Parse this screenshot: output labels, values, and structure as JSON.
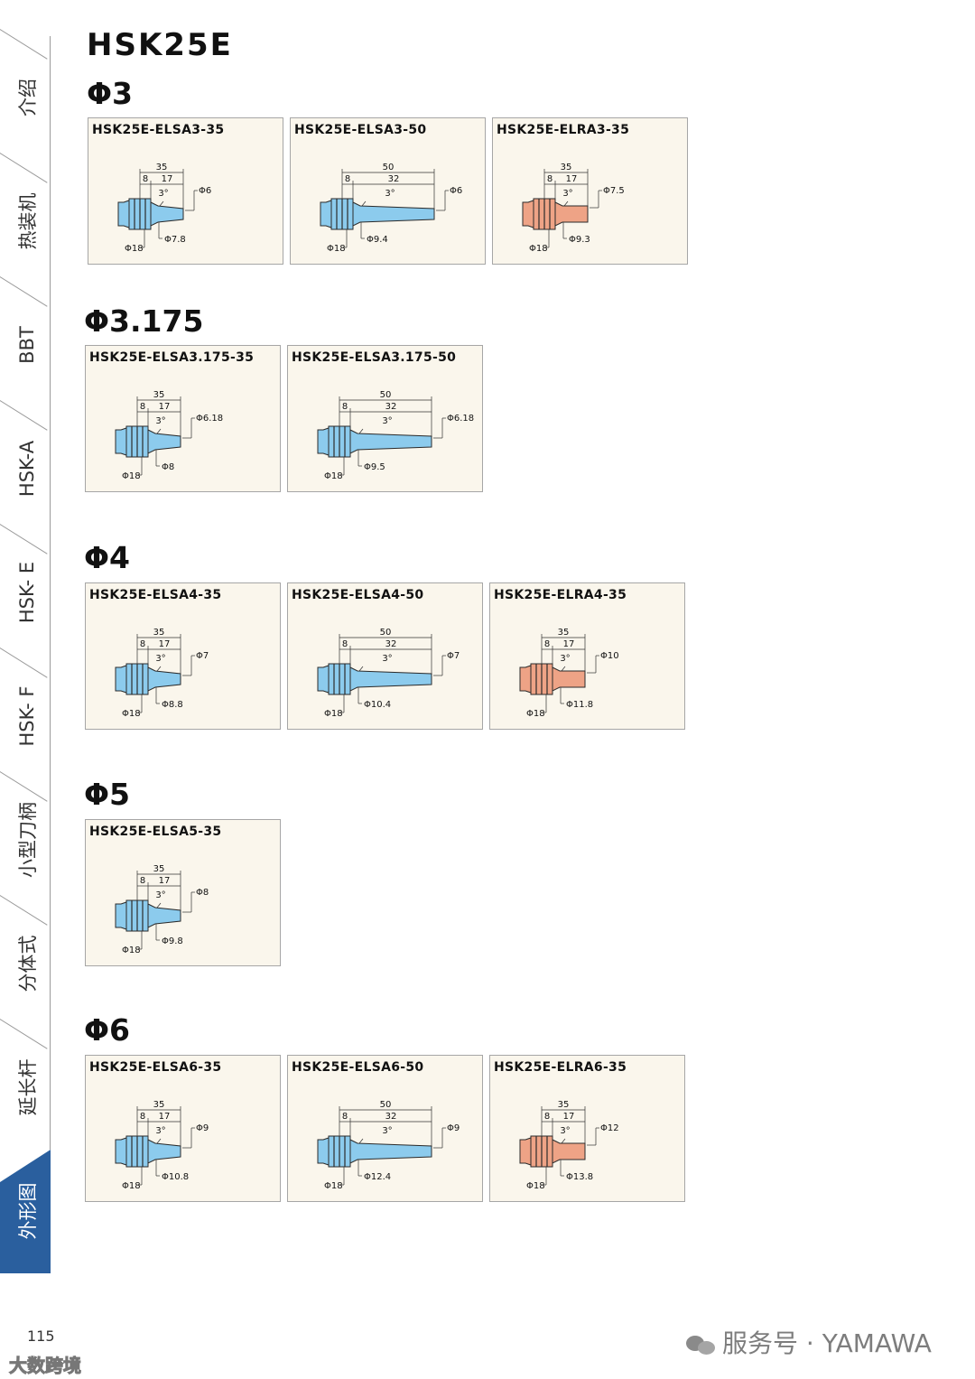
{
  "page_title": "HSK25E",
  "sidebar": {
    "items": [
      {
        "label": "介绍"
      },
      {
        "label": "热装机"
      },
      {
        "label": "BBT"
      },
      {
        "label": "HSK-A"
      },
      {
        "label": "HSK- E"
      },
      {
        "label": "HSK- F"
      },
      {
        "label": "小型刀柄"
      },
      {
        "label": "分体式"
      },
      {
        "label": "延长杆"
      },
      {
        "label": "外形图",
        "active": true
      }
    ]
  },
  "sections": [
    {
      "title": "Φ3",
      "cards": [
        {
          "model": "HSK25E-ELSA3-35",
          "type": "ELSA",
          "L": "35",
          "d1": "8",
          "d2": "17",
          "angle": "3°",
          "tip": "Φ6",
          "root": "Φ7.8",
          "flange": "Φ18"
        },
        {
          "model": "HSK25E-ELSA3-50",
          "type": "ELSA",
          "L": "50",
          "d1": "8",
          "d2": "32",
          "angle": "3°",
          "tip": "Φ6",
          "root": "Φ9.4",
          "flange": "Φ18"
        },
        {
          "model": "HSK25E-ELRA3-35",
          "type": "ELRA",
          "L": "35",
          "d1": "8",
          "d2": "17",
          "angle": "3°",
          "tip": "Φ7.5",
          "root": "Φ9.3",
          "flange": "Φ18"
        }
      ]
    },
    {
      "title": "Φ3.175",
      "cards": [
        {
          "model": "HSK25E-ELSA3.175-35",
          "type": "ELSA",
          "L": "35",
          "d1": "8",
          "d2": "17",
          "angle": "3°",
          "tip": "Φ6.18",
          "root": "Φ8",
          "flange": "Φ18"
        },
        {
          "model": "HSK25E-ELSA3.175-50",
          "type": "ELSA",
          "L": "50",
          "d1": "8",
          "d2": "32",
          "angle": "3°",
          "tip": "Φ6.18",
          "root": "Φ9.5",
          "flange": "Φ18"
        }
      ]
    },
    {
      "title": "Φ4",
      "cards": [
        {
          "model": "HSK25E-ELSA4-35",
          "type": "ELSA",
          "L": "35",
          "d1": "8",
          "d2": "17",
          "angle": "3°",
          "tip": "Φ7",
          "root": "Φ8.8",
          "flange": "Φ18"
        },
        {
          "model": "HSK25E-ELSA4-50",
          "type": "ELSA",
          "L": "50",
          "d1": "8",
          "d2": "32",
          "angle": "3°",
          "tip": "Φ7",
          "root": "Φ10.4",
          "flange": "Φ18"
        },
        {
          "model": "HSK25E-ELRA4-35",
          "type": "ELRA",
          "L": "35",
          "d1": "8",
          "d2": "17",
          "angle": "3°",
          "tip": "Φ10",
          "root": "Φ11.8",
          "flange": "Φ18"
        }
      ]
    },
    {
      "title": "Φ5",
      "cards": [
        {
          "model": "HSK25E-ELSA5-35",
          "type": "ELSA",
          "L": "35",
          "d1": "8",
          "d2": "17",
          "angle": "3°",
          "tip": "Φ8",
          "root": "Φ9.8",
          "flange": "Φ18"
        }
      ]
    },
    {
      "title": "Φ6",
      "cards": [
        {
          "model": "HSK25E-ELSA6-35",
          "type": "ELSA",
          "L": "35",
          "d1": "8",
          "d2": "17",
          "angle": "3°",
          "tip": "Φ9",
          "root": "Φ10.8",
          "flange": "Φ18"
        },
        {
          "model": "HSK25E-ELSA6-50",
          "type": "ELSA",
          "L": "50",
          "d1": "8",
          "d2": "32",
          "angle": "3°",
          "tip": "Φ9",
          "root": "Φ12.4",
          "flange": "Φ18"
        },
        {
          "model": "HSK25E-ELRA6-35",
          "type": "ELRA",
          "L": "35",
          "d1": "8",
          "d2": "17",
          "angle": "3°",
          "tip": "Φ12",
          "root": "Φ13.8",
          "flange": "Φ18"
        }
      ]
    }
  ],
  "colors": {
    "elsa": "#8ccbed",
    "elra": "#eea386",
    "sidebar_active": "#2a5f9e"
  },
  "footer": {
    "page_number": "115",
    "watermark_left": "大数跨境",
    "watermark_right": "服务号 · YAMAWA"
  }
}
